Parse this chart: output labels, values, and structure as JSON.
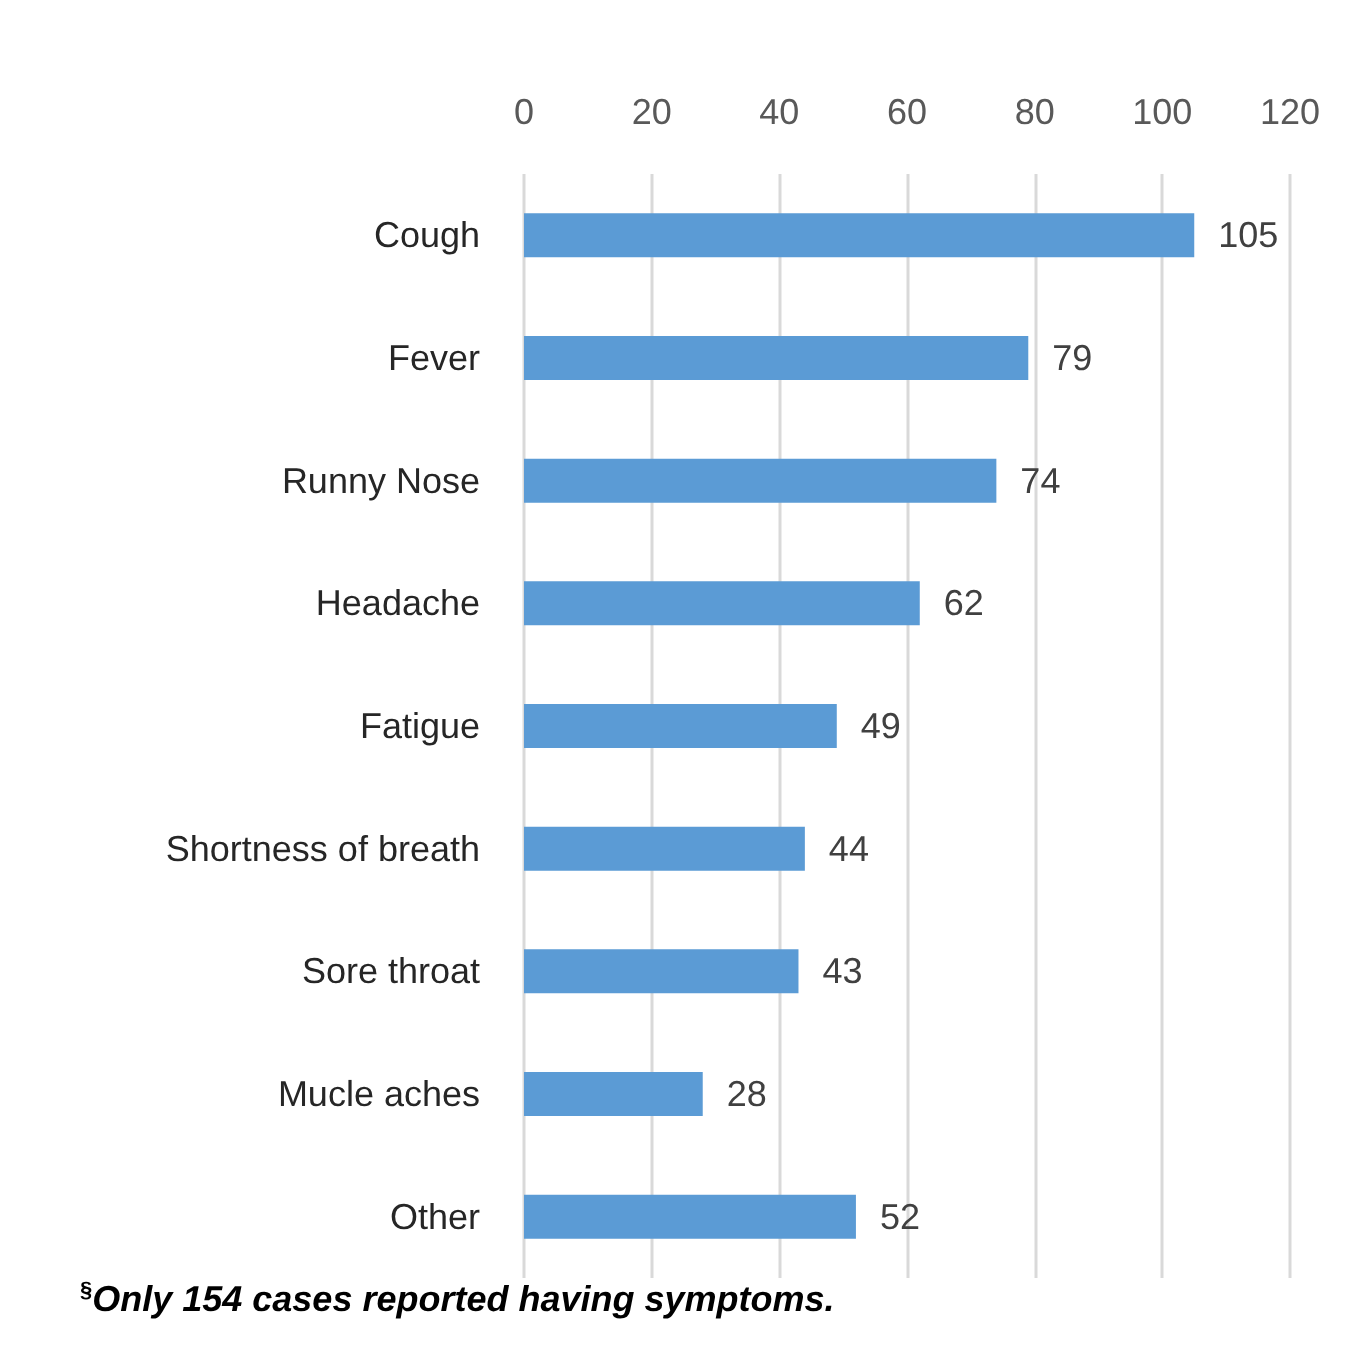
{
  "chart_data": {
    "type": "bar",
    "orientation": "horizontal",
    "categories": [
      "Cough",
      "Fever",
      "Runny Nose",
      "Headache",
      "Fatigue",
      "Shortness of breath",
      "Sore throat",
      "Mucle aches",
      "Other"
    ],
    "values": [
      105,
      79,
      74,
      62,
      49,
      44,
      43,
      28,
      52
    ],
    "color": "#5b9bd5",
    "xlim": [
      0,
      120
    ],
    "xticks": [
      0,
      20,
      40,
      60,
      80,
      100,
      120
    ],
    "grid": "x",
    "data_labels": true,
    "annotations": [
      "$^{§}$Only 154 cases reported having symptoms."
    ]
  }
}
